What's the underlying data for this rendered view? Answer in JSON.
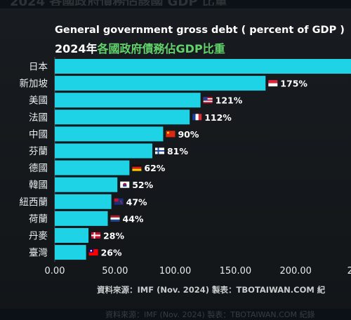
{
  "header": {
    "title_en": "General government gross debt ( percent of GDP )",
    "title_year": "2024年",
    "title_zh": "各國政府債務佔GDP比重"
  },
  "footer": {
    "source": "資料來源：IMF (Nov. 2024)  製表：TBOTAIWAN.COM 紀"
  },
  "colors": {
    "bar": "#1fd3e6",
    "accent_green": "#62d36b",
    "background": "#14181c"
  },
  "chart_data": {
    "type": "bar",
    "orientation": "horizontal",
    "title": "General government gross debt ( percent of GDP )",
    "subtitle": "2024年各國政府債務佔GDP比重",
    "categories": [
      "日本",
      "新加坡",
      "美國",
      "法國",
      "中國",
      "芬蘭",
      "德國",
      "韓國",
      "紐西蘭",
      "荷蘭",
      "丹麥",
      "臺灣"
    ],
    "values": [
      251,
      175,
      121,
      112,
      90,
      81,
      62,
      52,
      47,
      44,
      28,
      26
    ],
    "data_labels": [
      "",
      "175%",
      "121%",
      "112%",
      "90%",
      "81%",
      "62%",
      "52%",
      "47%",
      "44%",
      "28%",
      "26%"
    ],
    "flags": [
      "jp",
      "sg",
      "us",
      "fr",
      "cn",
      "fi",
      "de",
      "kr",
      "nz",
      "nl",
      "dk",
      "tw"
    ],
    "xlim": [
      0,
      250
    ],
    "xticks": [
      "0.00",
      "50.00",
      "100.00",
      "150.00",
      "200.00",
      "250"
    ],
    "grid": false,
    "legend": "none"
  }
}
